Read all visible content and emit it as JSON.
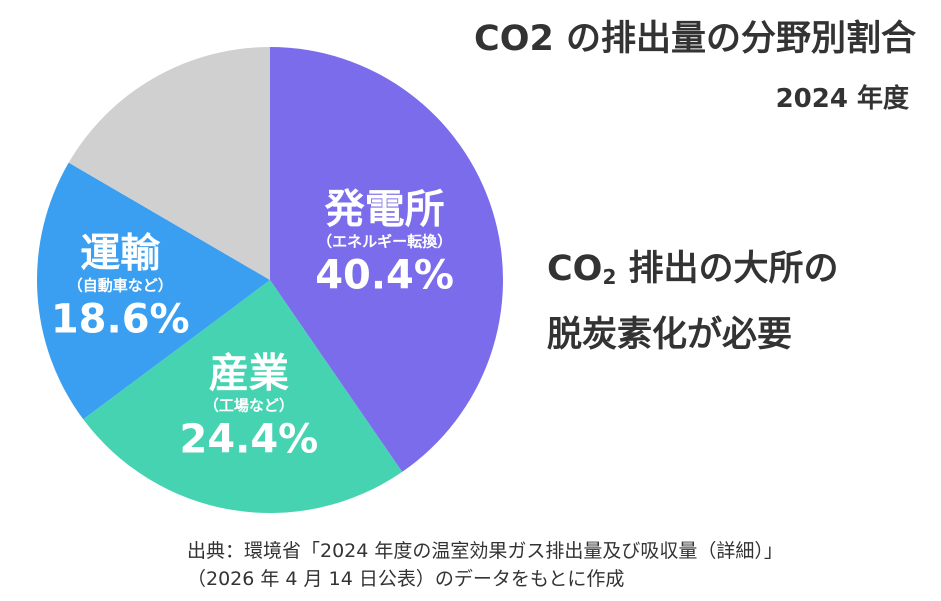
{
  "title": "CO2 の排出量の分野別割合",
  "subtitle": "2024 年度",
  "message": {
    "line1_prefix": "CO",
    "line1_sub": "2",
    "line1_suffix": " 排出の大所の",
    "line2": "脱炭素化が必要"
  },
  "source": {
    "line1": "出典：環境省「2024 年度の温室効果ガス排出量及び吸収量（詳細）」",
    "line2": "（2026 年 4 月 14 日公表）のデータをもとに作成"
  },
  "chart_data": {
    "type": "pie",
    "start_angle_deg": 0,
    "direction": "clockwise",
    "legend": "none",
    "slices": [
      {
        "name": "発電所",
        "sub": "（エネルギー転換）",
        "value_label": "40.4%",
        "value": 40.4,
        "color": "#7B6CEB"
      },
      {
        "name": "産業",
        "sub": "（工場など）",
        "value_label": "24.4%",
        "value": 24.4,
        "color": "#45D3B1"
      },
      {
        "name": "運輸",
        "sub": "（自動車など）",
        "value_label": "18.6%",
        "value": 18.6,
        "color": "#3A9FF0"
      },
      {
        "name": "",
        "sub": "",
        "value_label": "",
        "value": 16.6,
        "color": "#D0D0D0"
      }
    ]
  }
}
